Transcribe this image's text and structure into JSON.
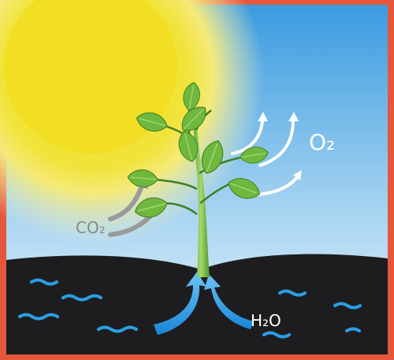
{
  "labels": {
    "co2": "CO₂",
    "o2": "O₂",
    "h2o": "H₂O"
  }
}
